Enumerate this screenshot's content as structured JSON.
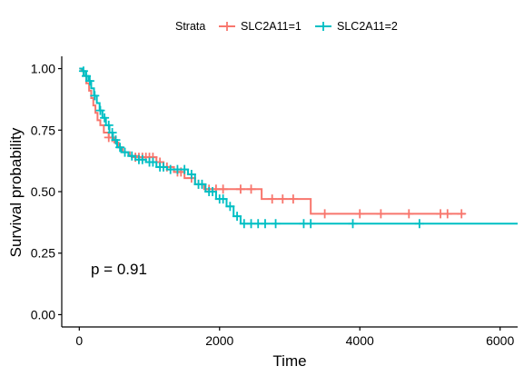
{
  "chart_data": {
    "type": "line",
    "subtype": "kaplan-meier",
    "xlabel": "Time",
    "ylabel": "Survival probability",
    "xlim": [
      -250,
      6250
    ],
    "ylim": [
      -0.05,
      1.05
    ],
    "x_ticks": [
      0,
      2000,
      4000,
      6000
    ],
    "y_ticks": [
      0.0,
      0.25,
      0.5,
      0.75,
      1.0
    ],
    "x_tick_labels": [
      "0",
      "2000",
      "4000",
      "6000"
    ],
    "y_tick_labels": [
      "0.00",
      "0.25",
      "0.50",
      "0.75",
      "1.00"
    ],
    "grid": false,
    "legend": {
      "title": "Strata",
      "placement": "top",
      "entries": [
        "SLC2A11=1",
        "SLC2A11=2"
      ]
    },
    "annotation": "p = 0.91",
    "series": [
      {
        "name": "SLC2A11=1",
        "color": "#F8766D",
        "steps": [
          [
            0,
            1.0
          ],
          [
            30,
            0.99
          ],
          [
            60,
            0.97
          ],
          [
            100,
            0.94
          ],
          [
            140,
            0.91
          ],
          [
            170,
            0.88
          ],
          [
            200,
            0.85
          ],
          [
            230,
            0.82
          ],
          [
            260,
            0.79
          ],
          [
            300,
            0.77
          ],
          [
            350,
            0.74
          ],
          [
            420,
            0.72
          ],
          [
            500,
            0.7
          ],
          [
            560,
            0.68
          ],
          [
            620,
            0.66
          ],
          [
            720,
            0.645
          ],
          [
            850,
            0.64
          ],
          [
            1000,
            0.64
          ],
          [
            1100,
            0.62
          ],
          [
            1200,
            0.6
          ],
          [
            1350,
            0.58
          ],
          [
            1500,
            0.555
          ],
          [
            1650,
            0.53
          ],
          [
            1780,
            0.51
          ],
          [
            2600,
            0.47
          ],
          [
            3300,
            0.41
          ],
          [
            5500,
            0.41
          ]
        ],
        "censors": [
          [
            420,
            0.72
          ],
          [
            470,
            0.72
          ],
          [
            800,
            0.64
          ],
          [
            850,
            0.64
          ],
          [
            900,
            0.64
          ],
          [
            950,
            0.64
          ],
          [
            1000,
            0.64
          ],
          [
            1050,
            0.64
          ],
          [
            1150,
            0.62
          ],
          [
            1250,
            0.6
          ],
          [
            1400,
            0.58
          ],
          [
            1450,
            0.58
          ],
          [
            1600,
            0.555
          ],
          [
            1700,
            0.53
          ],
          [
            1850,
            0.51
          ],
          [
            1950,
            0.51
          ],
          [
            2050,
            0.51
          ],
          [
            2300,
            0.51
          ],
          [
            2450,
            0.51
          ],
          [
            2750,
            0.47
          ],
          [
            2900,
            0.47
          ],
          [
            3050,
            0.47
          ],
          [
            3500,
            0.41
          ],
          [
            4000,
            0.41
          ],
          [
            4300,
            0.41
          ],
          [
            4700,
            0.41
          ],
          [
            5150,
            0.41
          ],
          [
            5250,
            0.41
          ],
          [
            5450,
            0.41
          ]
        ]
      },
      {
        "name": "SLC2A11=2",
        "color": "#00BFC4",
        "steps": [
          [
            0,
            1.0
          ],
          [
            50,
            0.99
          ],
          [
            90,
            0.97
          ],
          [
            130,
            0.95
          ],
          [
            170,
            0.92
          ],
          [
            210,
            0.89
          ],
          [
            250,
            0.86
          ],
          [
            290,
            0.83
          ],
          [
            330,
            0.8
          ],
          [
            380,
            0.77
          ],
          [
            430,
            0.74
          ],
          [
            480,
            0.71
          ],
          [
            540,
            0.68
          ],
          [
            600,
            0.66
          ],
          [
            700,
            0.645
          ],
          [
            800,
            0.63
          ],
          [
            950,
            0.62
          ],
          [
            1100,
            0.6
          ],
          [
            1250,
            0.59
          ],
          [
            1450,
            0.59
          ],
          [
            1550,
            0.57
          ],
          [
            1650,
            0.53
          ],
          [
            1800,
            0.5
          ],
          [
            1950,
            0.47
          ],
          [
            2100,
            0.44
          ],
          [
            2200,
            0.4
          ],
          [
            2300,
            0.37
          ],
          [
            6250,
            0.37
          ]
        ],
        "censors": [
          [
            60,
            0.99
          ],
          [
            100,
            0.97
          ],
          [
            150,
            0.95
          ],
          [
            220,
            0.89
          ],
          [
            300,
            0.83
          ],
          [
            360,
            0.8
          ],
          [
            420,
            0.77
          ],
          [
            470,
            0.74
          ],
          [
            520,
            0.71
          ],
          [
            580,
            0.68
          ],
          [
            650,
            0.66
          ],
          [
            750,
            0.645
          ],
          [
            850,
            0.63
          ],
          [
            900,
            0.63
          ],
          [
            1000,
            0.62
          ],
          [
            1050,
            0.62
          ],
          [
            1150,
            0.6
          ],
          [
            1200,
            0.6
          ],
          [
            1300,
            0.59
          ],
          [
            1400,
            0.59
          ],
          [
            1500,
            0.59
          ],
          [
            1600,
            0.57
          ],
          [
            1700,
            0.53
          ],
          [
            1750,
            0.53
          ],
          [
            1850,
            0.5
          ],
          [
            1900,
            0.5
          ],
          [
            2000,
            0.47
          ],
          [
            2050,
            0.47
          ],
          [
            2150,
            0.44
          ],
          [
            2250,
            0.4
          ],
          [
            2350,
            0.37
          ],
          [
            2450,
            0.37
          ],
          [
            2550,
            0.37
          ],
          [
            2650,
            0.37
          ],
          [
            2800,
            0.37
          ],
          [
            3200,
            0.37
          ],
          [
            3300,
            0.37
          ],
          [
            3900,
            0.37
          ],
          [
            4850,
            0.37
          ]
        ]
      }
    ]
  }
}
